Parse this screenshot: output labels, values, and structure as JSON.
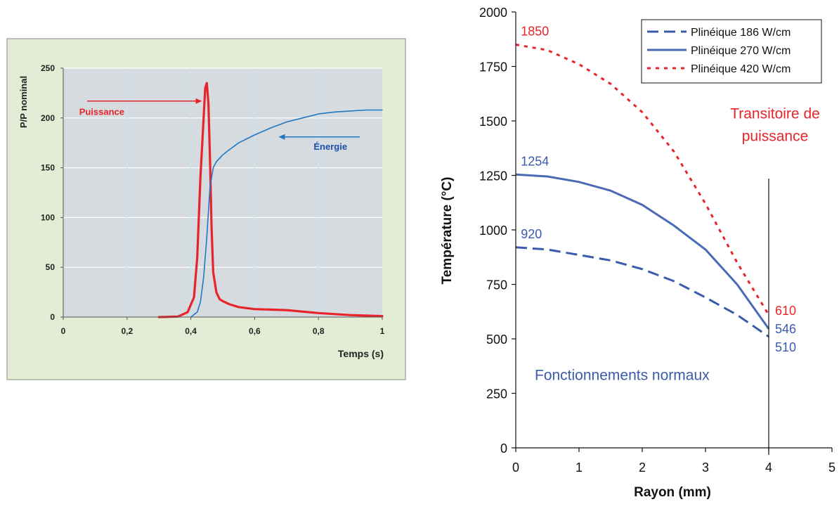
{
  "chart_data": [
    {
      "type": "line",
      "title": "",
      "xlabel": "Temps (s)",
      "ylabel": "P/P nominal",
      "xlim": [
        0,
        1
      ],
      "ylim": [
        0,
        250
      ],
      "x_ticks": [
        0,
        0.2,
        0.4,
        0.6,
        0.8,
        1
      ],
      "x_tick_labels": [
        "0",
        "0,2",
        "0,4",
        "0,6",
        "0,8",
        "1"
      ],
      "y_ticks": [
        0,
        50,
        100,
        150,
        200,
        250
      ],
      "y_tick_labels": [
        "0",
        "50",
        "100",
        "150",
        "200",
        "250"
      ],
      "grid": true,
      "series": [
        {
          "name": "Puissance",
          "color": "#e8242b",
          "x": [
            0.3,
            0.36,
            0.39,
            0.41,
            0.42,
            0.43,
            0.44,
            0.445,
            0.45,
            0.455,
            0.46,
            0.465,
            0.47,
            0.48,
            0.49,
            0.5,
            0.52,
            0.55,
            0.6,
            0.7,
            0.8,
            0.9,
            1.0
          ],
          "y": [
            0,
            0.5,
            5,
            20,
            60,
            140,
            200,
            230,
            235,
            215,
            160,
            90,
            45,
            25,
            18,
            16,
            13,
            10,
            8,
            7,
            4,
            2,
            1
          ]
        },
        {
          "name": "Énergie",
          "color": "#1f78c1",
          "x": [
            0.4,
            0.42,
            0.43,
            0.44,
            0.45,
            0.46,
            0.47,
            0.48,
            0.5,
            0.52,
            0.55,
            0.6,
            0.65,
            0.7,
            0.75,
            0.8,
            0.85,
            0.9,
            0.95,
            1.0
          ],
          "y": [
            0,
            5,
            15,
            40,
            80,
            130,
            150,
            156,
            163,
            168,
            175,
            183,
            190,
            196,
            200,
            204,
            206,
            207,
            208,
            208
          ]
        }
      ],
      "annotations": [
        {
          "text": "Puissance",
          "color": "#e8242b",
          "x": 0.05,
          "y": 203
        },
        {
          "text": "Énergie",
          "color": "#1f4ea8",
          "x": 0.785,
          "y": 168
        }
      ],
      "colors": {
        "plot_bg": "#d6dbe0",
        "frame_bg": "#e3ecd4",
        "frame_border": "#8a8a8a",
        "grid": "#ffffff",
        "vgrid": "#c7e3f4"
      }
    },
    {
      "type": "line",
      "title": "",
      "xlabel": "Rayon (mm)",
      "ylabel": "Température (°C)",
      "xlim": [
        0,
        5
      ],
      "ylim": [
        0,
        2000
      ],
      "x_ticks": [
        0,
        1,
        2,
        3,
        4,
        5
      ],
      "x_tick_labels": [
        "0",
        "1",
        "2",
        "3",
        "4",
        "5"
      ],
      "y_ticks": [
        0,
        250,
        500,
        750,
        1000,
        1250,
        1500,
        1750,
        2000
      ],
      "y_tick_labels": [
        "0",
        "250",
        "500",
        "750",
        "1000",
        "1250",
        "1500",
        "1750",
        "2000"
      ],
      "grid": false,
      "legend_position": "top-right",
      "series": [
        {
          "name": "Plinéique 186 W/cm",
          "color": "#3b5bab",
          "dash": "dashed",
          "x": [
            0,
            0.5,
            1,
            1.5,
            2,
            2.5,
            3,
            3.5,
            4
          ],
          "y": [
            920,
            910,
            885,
            860,
            820,
            765,
            690,
            610,
            510
          ]
        },
        {
          "name": "Plinéique 270 W/cm",
          "color": "#4a6ab5",
          "dash": "solid",
          "x": [
            0,
            0.5,
            1,
            1.5,
            2,
            2.5,
            3,
            3.5,
            4
          ],
          "y": [
            1254,
            1245,
            1220,
            1180,
            1115,
            1020,
            910,
            750,
            546
          ]
        },
        {
          "name": "Plinéique 420 W/cm",
          "color": "#e8242b",
          "dash": "dotted",
          "x": [
            0,
            0.5,
            1,
            1.5,
            2,
            2.5,
            3,
            3.5,
            4
          ],
          "y": [
            1850,
            1825,
            1760,
            1670,
            1540,
            1360,
            1120,
            850,
            610
          ]
        }
      ],
      "value_labels": [
        {
          "text": "1850",
          "color": "#e8242b",
          "x": 0.08,
          "y": 1850
        },
        {
          "text": "1254",
          "color": "#3b5bab",
          "x": 0.08,
          "y": 1254
        },
        {
          "text": "920",
          "color": "#3b5bab",
          "x": 0.08,
          "y": 920
        },
        {
          "text": "610",
          "color": "#e8242b",
          "x": 4.1,
          "y": 610
        },
        {
          "text": "546",
          "color": "#3b5bab",
          "x": 4.1,
          "y": 546
        },
        {
          "text": "510",
          "color": "#3b5bab",
          "x": 4.1,
          "y": 510
        }
      ],
      "annotations": [
        {
          "lines": [
            "Transitoire de",
            "puissance"
          ],
          "color": "#e8242b",
          "x": 4.1,
          "y": 1530
        },
        {
          "lines": [
            "Fonctionnements normaux"
          ],
          "color": "#3b5bab",
          "x": 0.3,
          "y": 330
        }
      ],
      "vertical_line_x": 4
    }
  ]
}
